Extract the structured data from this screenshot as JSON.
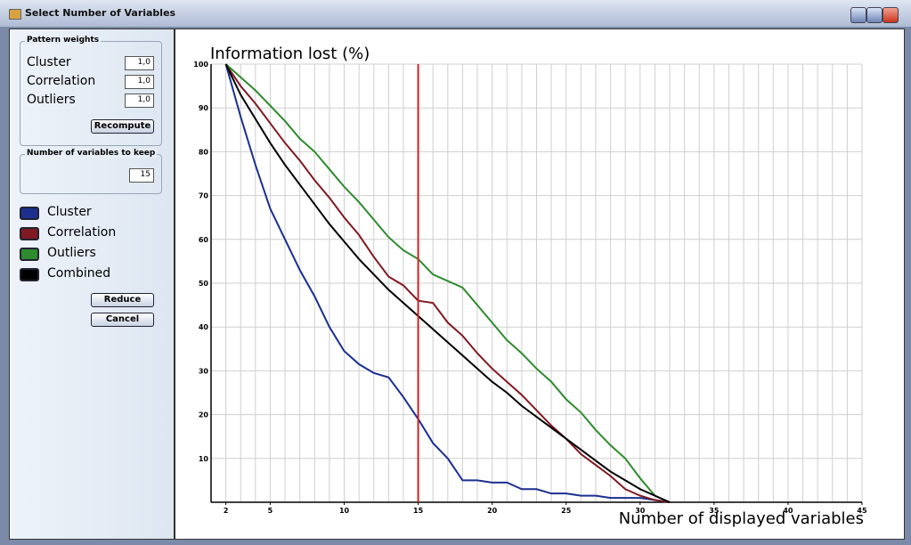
{
  "window": {
    "title": "Select Number of Variables"
  },
  "panel": {
    "weights": {
      "title": "Pattern weights",
      "rows": [
        {
          "label": "Cluster",
          "value": "1,0"
        },
        {
          "label": "Correlation",
          "value": "1,0"
        },
        {
          "label": "Outliers",
          "value": "1,0"
        }
      ],
      "button": "Recompute"
    },
    "keep": {
      "title": "Number of variables to keep",
      "value": 15
    },
    "buttons": [
      "Reduce",
      "Cancel"
    ]
  },
  "chart_data": {
    "type": "line",
    "ylabel": "Information lost (%)",
    "xlabel": "Number of displayed variables",
    "x": [
      2,
      3,
      4,
      5,
      6,
      7,
      8,
      9,
      10,
      11,
      12,
      13,
      14,
      15,
      16,
      17,
      18,
      19,
      20,
      21,
      22,
      23,
      24,
      25,
      26,
      27,
      28,
      29,
      30,
      31,
      32
    ],
    "series": [
      {
        "name": "Cluster",
        "color": "#1c2f8f",
        "values": [
          100,
          88,
          77,
          67,
          60,
          53,
          47,
          40,
          34.5,
          31.5,
          29.5,
          28.5,
          24,
          19,
          13.5,
          10,
          5,
          5,
          4.5,
          4.5,
          3,
          3,
          2,
          2,
          1.5,
          1.5,
          1,
          1,
          1,
          0.5,
          0
        ]
      },
      {
        "name": "Correlation",
        "color": "#7f1a22",
        "values": [
          100,
          95,
          91,
          86.5,
          82,
          78,
          73.5,
          69.5,
          65,
          61,
          56,
          51.5,
          49.5,
          46,
          45.5,
          41,
          38,
          34,
          30.5,
          27.5,
          24.5,
          21,
          17.5,
          14.5,
          11,
          8.5,
          6,
          3,
          1.5,
          0.5,
          0
        ]
      },
      {
        "name": "Outliers",
        "color": "#2e8b2e",
        "values": [
          100,
          97,
          94,
          90.5,
          87,
          83,
          80,
          76,
          72,
          68.5,
          64.5,
          60.5,
          57.5,
          55.5,
          52,
          50.5,
          49,
          45,
          41,
          37,
          34,
          30.5,
          27.5,
          23.5,
          20.5,
          16.5,
          13,
          10,
          5.5,
          1.5,
          0
        ]
      },
      {
        "name": "Combined",
        "color": "#000000",
        "values": [
          100,
          93,
          87.5,
          82,
          77,
          72.5,
          68,
          63.5,
          59.5,
          55.5,
          52,
          48.5,
          45.5,
          42.5,
          39.5,
          36.5,
          33.5,
          30.5,
          27.5,
          25,
          22,
          19.5,
          17,
          14.5,
          12,
          9.5,
          7,
          5,
          3,
          1.5,
          0
        ]
      }
    ],
    "xlim": [
      1,
      45
    ],
    "xticks": [
      2,
      5,
      10,
      15,
      20,
      25,
      30,
      35,
      40,
      45
    ],
    "x_grid_step": 1,
    "ylim": [
      0,
      100
    ],
    "yticks": [
      10,
      20,
      30,
      40,
      50,
      60,
      70,
      80,
      90,
      100
    ],
    "grid": true,
    "marker_color": "#d42020"
  }
}
